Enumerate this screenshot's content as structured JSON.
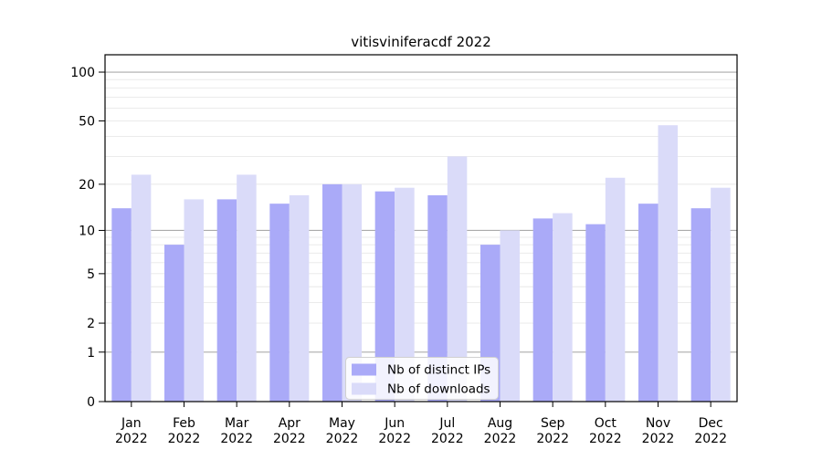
{
  "chart_data": {
    "type": "bar",
    "title": "vitisviniferacdf 2022",
    "categories": [
      "Jan",
      "Feb",
      "Mar",
      "Apr",
      "May",
      "Jun",
      "Jul",
      "Aug",
      "Sep",
      "Oct",
      "Nov",
      "Dec"
    ],
    "year_label": "2022",
    "series": [
      {
        "name": "Nb of distinct IPs",
        "color": "#aaaaf8",
        "values": [
          14,
          8,
          16,
          15,
          20,
          18,
          17,
          8,
          12,
          11,
          15,
          14
        ]
      },
      {
        "name": "Nb of downloads",
        "color": "#dadbf9",
        "values": [
          23,
          16,
          23,
          17,
          20,
          19,
          30,
          10,
          13,
          22,
          47,
          19
        ]
      }
    ],
    "y_ticks": [
      100,
      50,
      20,
      10,
      5,
      2,
      1,
      0
    ],
    "y_minor_gridlines": [
      3,
      4,
      6,
      7,
      8,
      9,
      30,
      40,
      60,
      70,
      80,
      90
    ],
    "y_decade_gridlines": [
      1,
      10,
      100
    ],
    "scale": "log1p",
    "ylim": [
      0,
      128
    ],
    "grid": true,
    "legend_position": "lower center",
    "colors": {
      "axis": "#000000",
      "decade_grid": "#ababab",
      "light_grid": "#e8e8e8",
      "legend_border": "#d0d0d0",
      "legend_bg": "#ffffff"
    }
  }
}
